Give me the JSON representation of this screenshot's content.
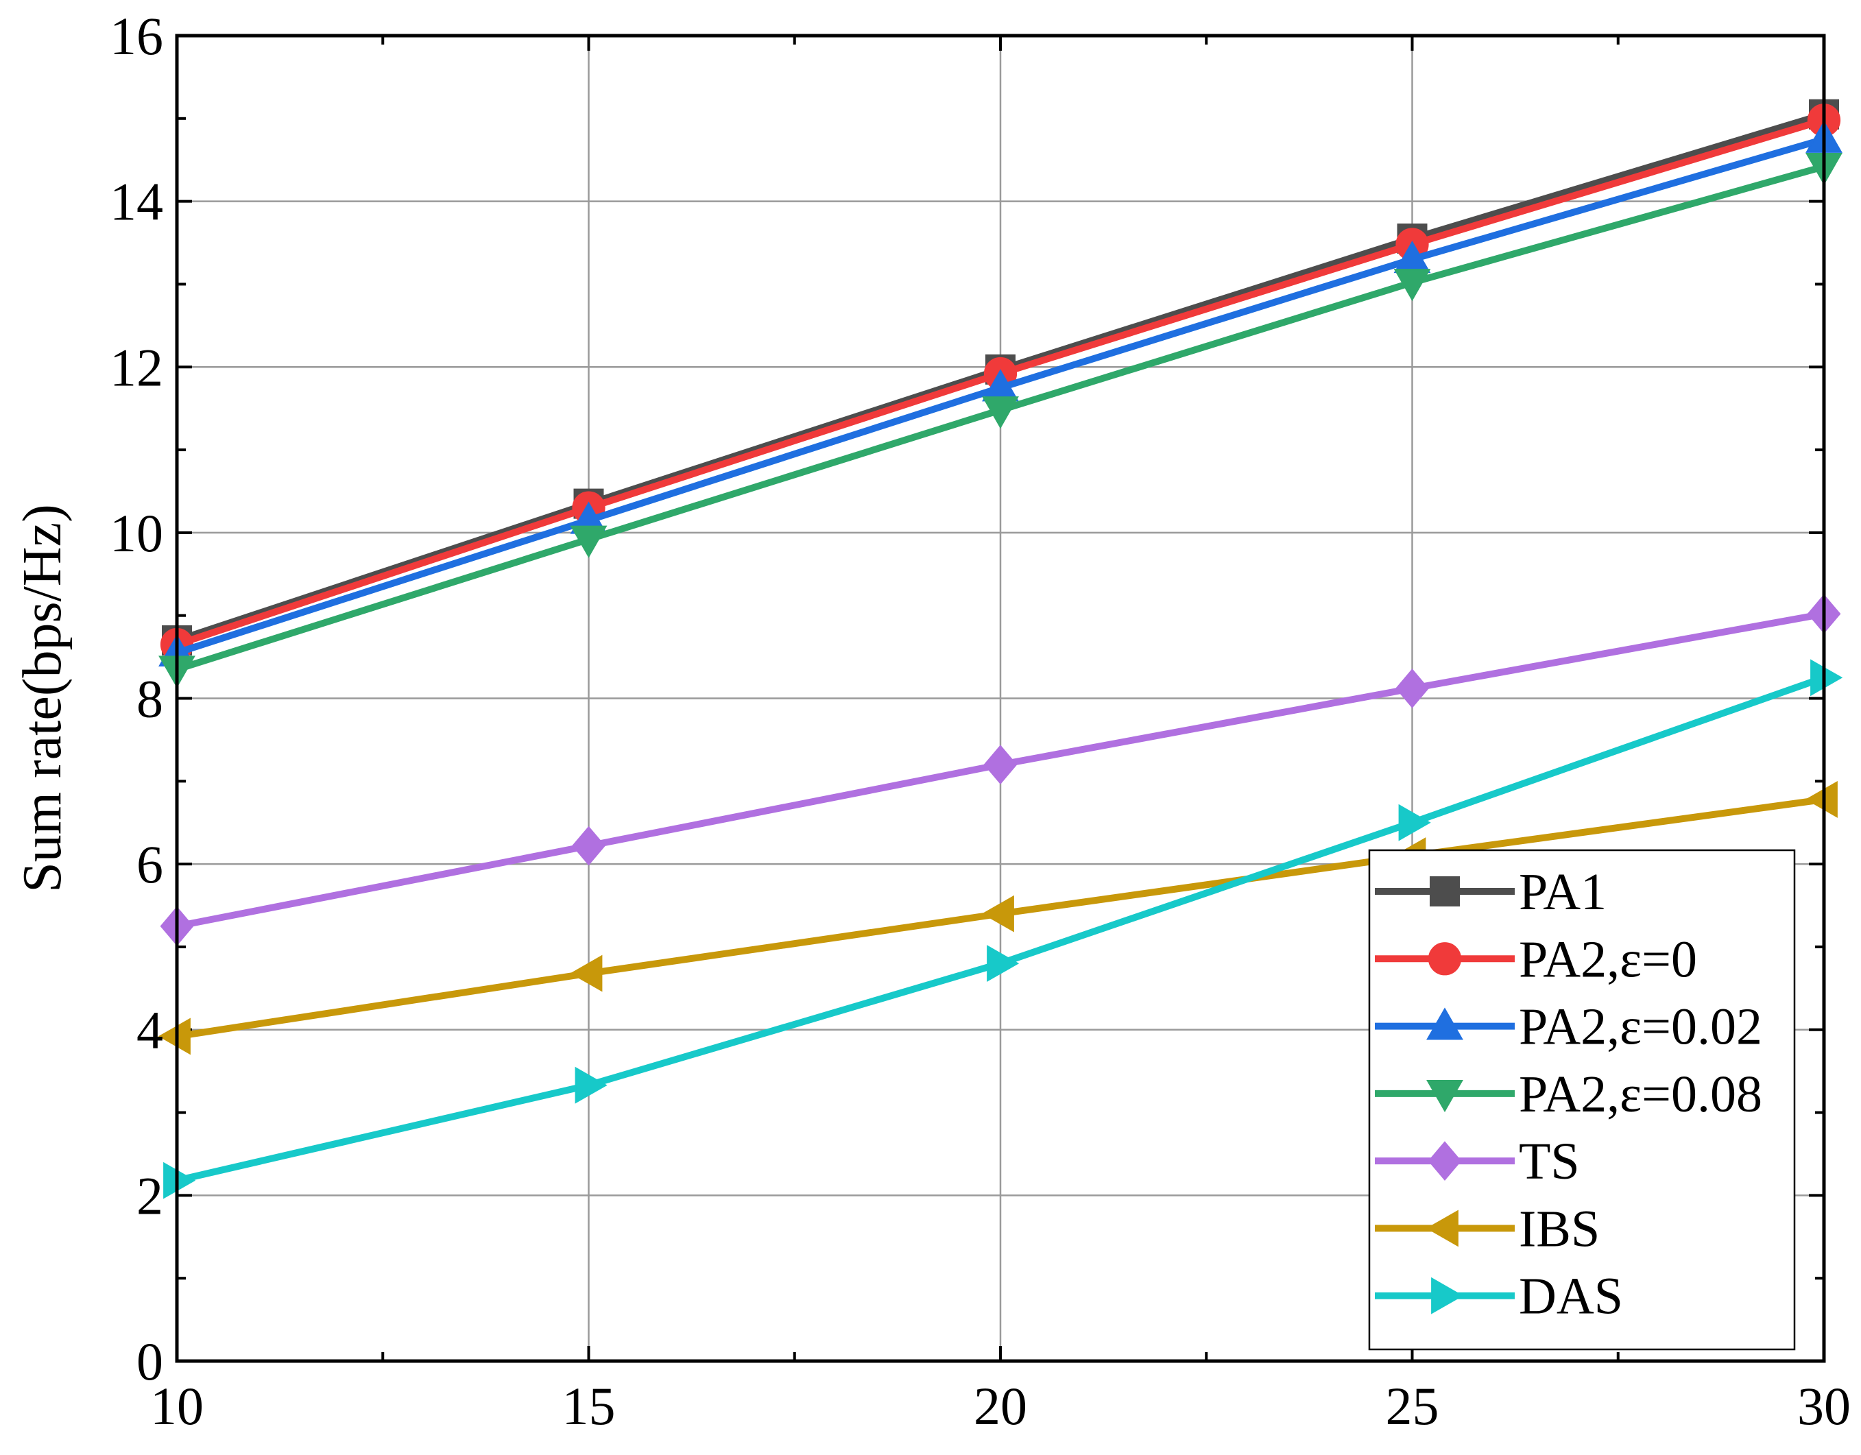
{
  "chart_data": {
    "type": "line",
    "title": "",
    "xlabel": "",
    "ylabel": "Sum rate(bps/Hz)",
    "x": [
      10,
      15,
      20,
      25,
      30
    ],
    "xlim": [
      10,
      30
    ],
    "ylim": [
      0,
      16
    ],
    "xticks": [
      10,
      15,
      20,
      25,
      30
    ],
    "yticks": [
      0,
      2,
      4,
      6,
      8,
      10,
      12,
      14,
      16
    ],
    "grid": true,
    "legend_position": "bottom-right",
    "series": [
      {
        "name": "PA1",
        "values": [
          8.7,
          10.35,
          11.97,
          13.55,
          15.05
        ],
        "color": "#4d4d4d",
        "marker": "square"
      },
      {
        "name": "PA2,ε=0",
        "values": [
          8.65,
          10.3,
          11.92,
          13.48,
          14.98
        ],
        "color": "#f03a3a",
        "marker": "circle"
      },
      {
        "name": "PA2,ε=0.02",
        "values": [
          8.55,
          10.15,
          11.75,
          13.3,
          14.75
        ],
        "color": "#1f6fe0",
        "marker": "triangle-up"
      },
      {
        "name": "PA2,ε=0.08",
        "values": [
          8.35,
          9.92,
          11.48,
          13.02,
          14.42
        ],
        "color": "#2fa86a",
        "marker": "triangle-down"
      },
      {
        "name": "TS",
        "values": [
          5.25,
          6.22,
          7.2,
          8.12,
          9.02
        ],
        "color": "#b070e0",
        "marker": "diamond"
      },
      {
        "name": "IBS",
        "values": [
          3.92,
          4.68,
          5.4,
          6.1,
          6.78
        ],
        "color": "#c8980a",
        "marker": "triangle-left"
      },
      {
        "name": "DAS",
        "values": [
          2.18,
          3.33,
          4.8,
          6.5,
          8.25
        ],
        "color": "#17c9c9",
        "marker": "triangle-right"
      }
    ]
  }
}
